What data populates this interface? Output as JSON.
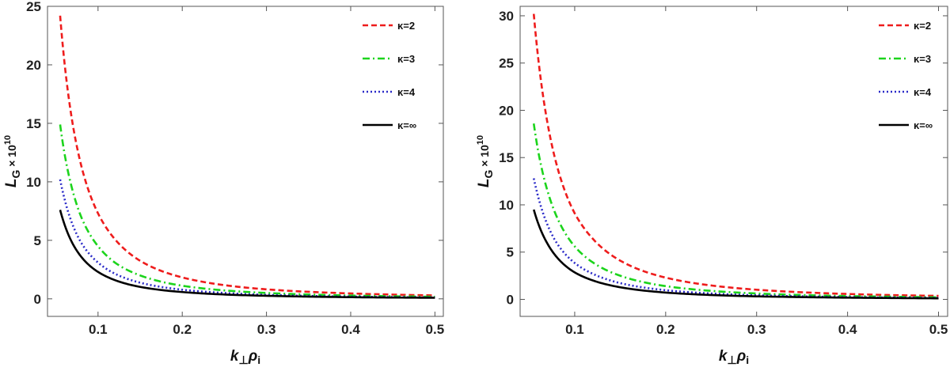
{
  "chart_data": [
    {
      "type": "line",
      "xlabel": "k⊥ρi",
      "ylabel": "LG × 10^10",
      "xlim": [
        0.04,
        0.51
      ],
      "ylim": [
        -1.5,
        25
      ],
      "x_ticks": [
        "0.1",
        "0.2",
        "0.3",
        "0.4",
        "0.5"
      ],
      "y_ticks": [
        "0",
        "5",
        "10",
        "15",
        "20",
        "25"
      ],
      "legend_position": "top-right",
      "grid": false,
      "x": [
        0.055,
        0.06,
        0.07,
        0.08,
        0.1,
        0.12,
        0.15,
        0.2,
        0.25,
        0.3,
        0.35,
        0.4,
        0.45,
        0.5
      ],
      "series": [
        {
          "name": "κ=2",
          "color": "#ee1c1c",
          "dash": "dashed",
          "values": [
            24.2,
            20.3,
            14.9,
            11.4,
            7.3,
            5.1,
            3.25,
            1.83,
            1.17,
            0.81,
            0.6,
            0.46,
            0.36,
            0.29
          ]
        },
        {
          "name": "κ=3",
          "color": "#1cd41c",
          "dash": "dashdot",
          "values": [
            14.9,
            12.5,
            9.2,
            7.0,
            4.5,
            3.1,
            2.0,
            1.12,
            0.72,
            0.5,
            0.37,
            0.28,
            0.22,
            0.18
          ]
        },
        {
          "name": "κ=4",
          "color": "#2a2ac8",
          "dash": "dotted",
          "values": [
            10.2,
            8.6,
            6.3,
            4.8,
            3.1,
            2.15,
            1.38,
            0.78,
            0.5,
            0.34,
            0.25,
            0.19,
            0.15,
            0.12
          ]
        },
        {
          "name": "κ=∞",
          "color": "#000000",
          "dash": "solid",
          "values": [
            7.6,
            6.4,
            4.7,
            3.6,
            2.3,
            1.6,
            1.02,
            0.58,
            0.37,
            0.26,
            0.19,
            0.14,
            0.11,
            0.09
          ]
        }
      ]
    },
    {
      "type": "line",
      "xlabel": "k⊥ρi",
      "ylabel": "LG × 10^10",
      "xlim": [
        0.04,
        0.51
      ],
      "ylim": [
        -1.8,
        31
      ],
      "x_ticks": [
        "0.1",
        "0.2",
        "0.3",
        "0.4",
        "0.5"
      ],
      "y_ticks": [
        "0",
        "5",
        "10",
        "15",
        "20",
        "25",
        "30"
      ],
      "legend_position": "top-right",
      "grid": false,
      "x": [
        0.055,
        0.06,
        0.07,
        0.08,
        0.1,
        0.12,
        0.15,
        0.2,
        0.25,
        0.3,
        0.35,
        0.4,
        0.45,
        0.5
      ],
      "series": [
        {
          "name": "κ=2",
          "color": "#ee1c1c",
          "dash": "dashed",
          "values": [
            30.2,
            25.4,
            18.7,
            14.3,
            9.1,
            6.4,
            4.1,
            2.3,
            1.47,
            1.02,
            0.75,
            0.57,
            0.45,
            0.37
          ]
        },
        {
          "name": "κ=3",
          "color": "#1cd41c",
          "dash": "dashdot",
          "values": [
            18.6,
            15.6,
            11.5,
            8.8,
            5.6,
            3.9,
            2.5,
            1.4,
            0.9,
            0.62,
            0.46,
            0.35,
            0.28,
            0.22
          ]
        },
        {
          "name": "κ=4",
          "color": "#2a2ac8",
          "dash": "dotted",
          "values": [
            12.8,
            10.8,
            7.9,
            6.0,
            3.85,
            2.7,
            1.72,
            0.97,
            0.62,
            0.43,
            0.32,
            0.24,
            0.19,
            0.15
          ]
        },
        {
          "name": "κ=∞",
          "color": "#000000",
          "dash": "solid",
          "values": [
            9.5,
            8.0,
            5.9,
            4.5,
            2.85,
            2.0,
            1.28,
            0.72,
            0.46,
            0.32,
            0.24,
            0.18,
            0.14,
            0.11
          ]
        }
      ]
    }
  ]
}
